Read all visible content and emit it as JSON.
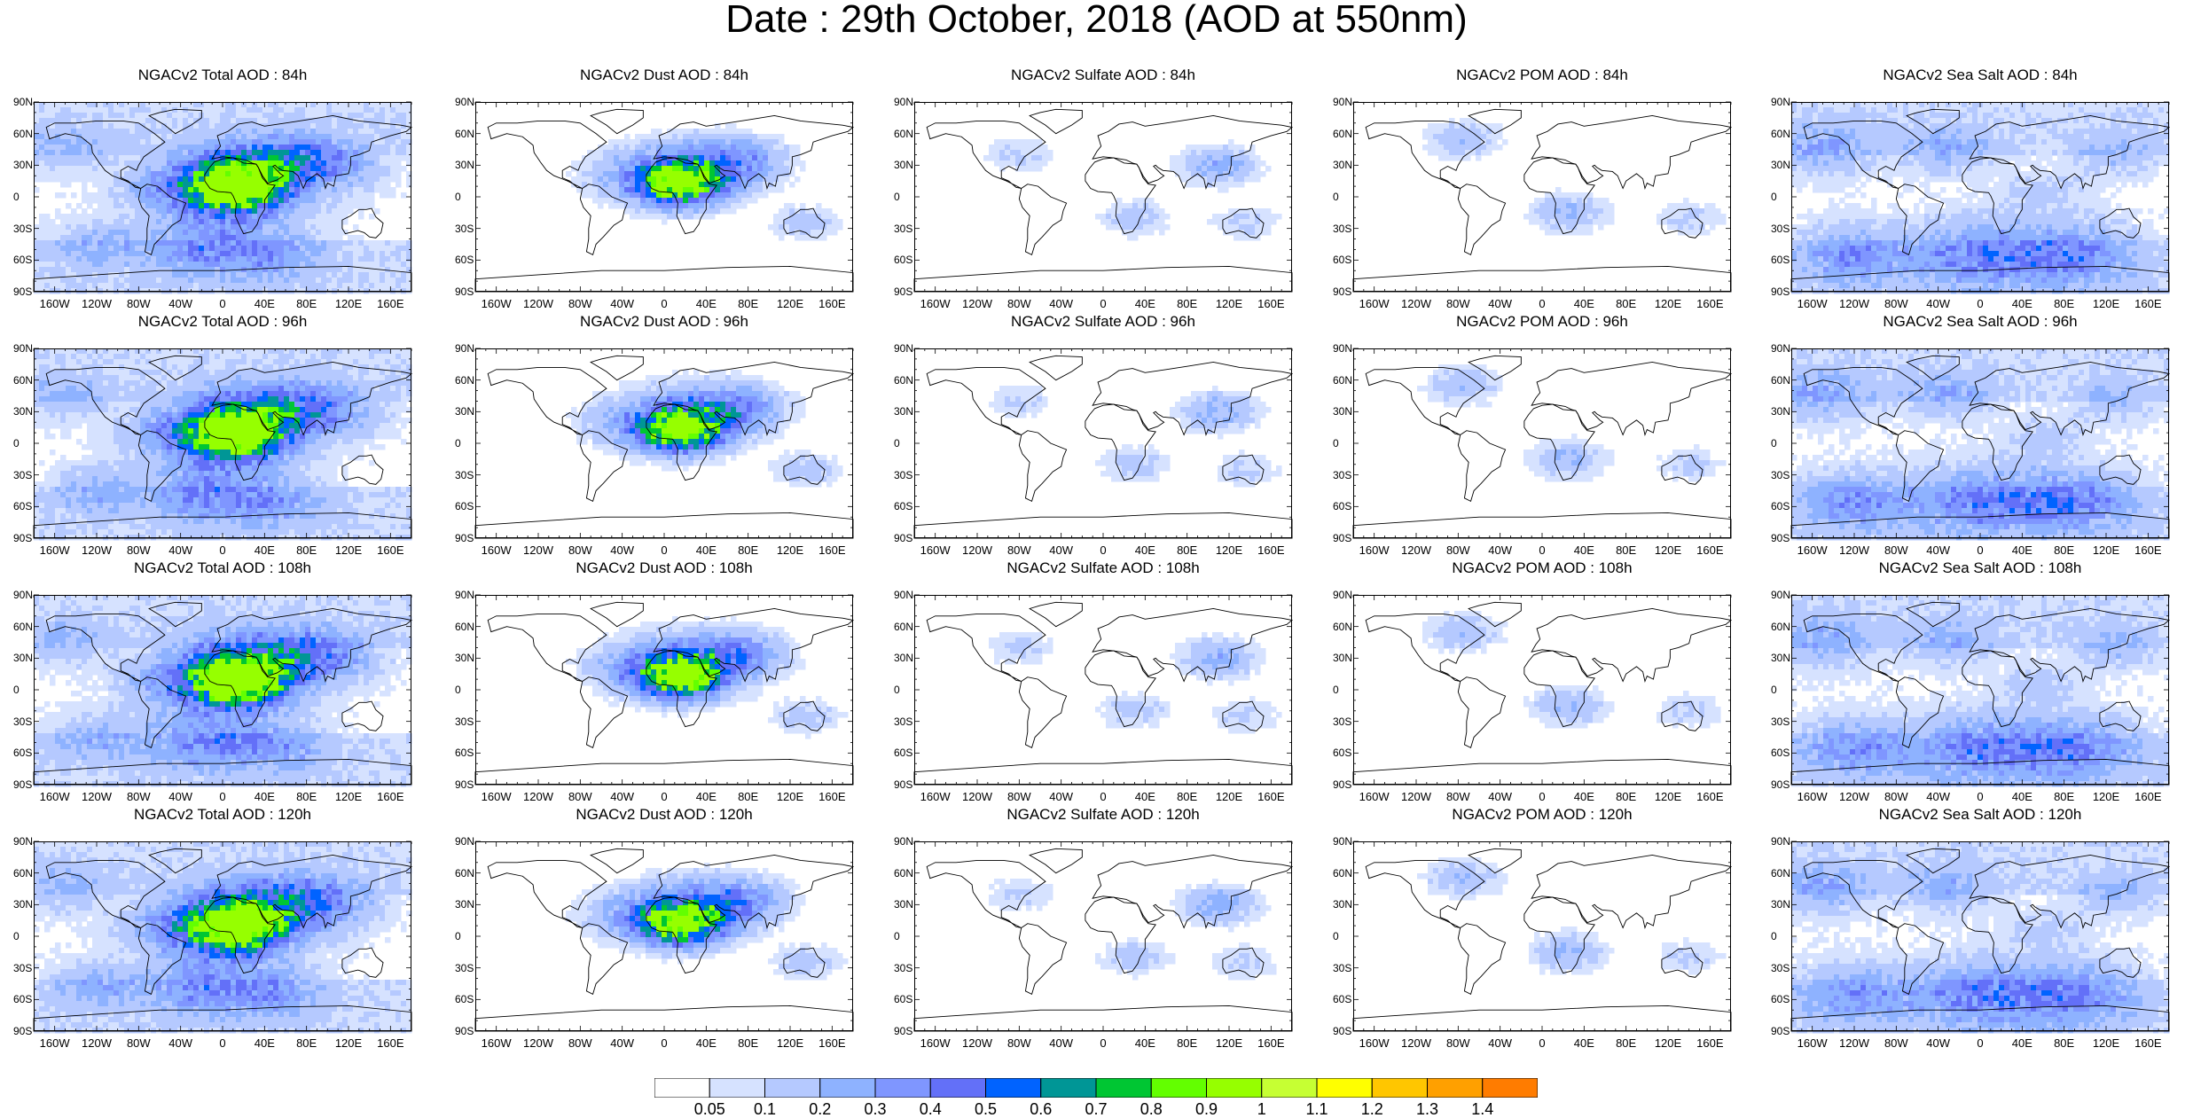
{
  "title": "Date : 29th October, 2018 (AOD at 550nm)",
  "panels": [
    [
      "NGACv2 Total AOD : 84h",
      "NGACv2 Dust AOD : 84h",
      "NGACv2 Sulfate AOD : 84h",
      "NGACv2 POM AOD : 84h",
      "NGACv2 Sea Salt AOD : 84h"
    ],
    [
      "NGACv2 Total AOD : 96h",
      "NGACv2 Dust AOD : 96h",
      "NGACv2 Sulfate AOD : 96h",
      "NGACv2 POM AOD : 96h",
      "NGACv2 Sea Salt AOD : 96h"
    ],
    [
      "NGACv2 Total AOD : 108h",
      "NGACv2 Dust AOD : 108h",
      "NGACv2 Sulfate AOD : 108h",
      "NGACv2 POM AOD : 108h",
      "NGACv2 Sea Salt AOD : 108h"
    ],
    [
      "NGACv2 Total AOD : 120h",
      "NGACv2 Dust AOD : 120h",
      "NGACv2 Sulfate AOD : 120h",
      "NGACv2 POM AOD : 120h",
      "NGACv2 Sea Salt  AOD : 120h"
    ]
  ],
  "lat_labels": [
    "90N",
    "60N",
    "30N",
    "0",
    "30S",
    "60S",
    "90S"
  ],
  "lon_labels": [
    "160W",
    "120W",
    "80W",
    "40W",
    "0",
    "40E",
    "80E",
    "120E",
    "160E"
  ],
  "colorbar": {
    "labels": [
      "0.05",
      "0.1",
      "0.2",
      "0.3",
      "0.4",
      "0.5",
      "0.6",
      "0.7",
      "0.8",
      "0.9",
      "1",
      "1.1",
      "1.2",
      "1.3",
      "1.4"
    ],
    "colors": [
      "#ffffff",
      "#d6e2ff",
      "#b5c9ff",
      "#8eb2ff",
      "#7f96ff",
      "#6370f8",
      "#0063ff",
      "#009696",
      "#00c633",
      "#63ff00",
      "#96ff00",
      "#c6ff33",
      "#ffff00",
      "#ffc600",
      "#ffa000",
      "#ff7c00",
      "#ff1900"
    ]
  }
}
